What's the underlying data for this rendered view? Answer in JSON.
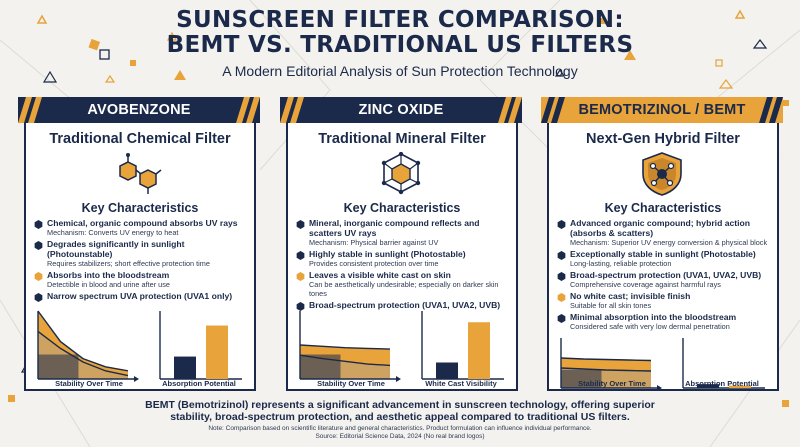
{
  "header": {
    "title_line1": "SUNSCREEN FILTER COMPARISON:",
    "title_line2": "BEMT VS. TRADITIONAL US FILTERS",
    "subtitle": "A Modern Editorial Analysis of Sun Protection Technology"
  },
  "colors": {
    "navy": "#1b2a4a",
    "gold": "#e8a33a",
    "tan": "#c9a36a",
    "background": "#f3f2ef"
  },
  "cards": [
    {
      "banner": "AVOBENZONE",
      "subtitle": "Traditional Chemical Filter",
      "icon": "molecule-icon",
      "key_title": "Key Characteristics",
      "items": [
        {
          "heading": "Chemical, organic compound absorbs UV rays",
          "detail": "Mechanism: Converts UV energy to heat",
          "bullet": "hexagon-navy"
        },
        {
          "heading": "Degrades significantly in sunlight (Photounstable)",
          "detail": "Requires stabilizers; short effective protection time",
          "bullet": "hexagon-navy"
        },
        {
          "heading": "Absorbs into the bloodstream",
          "detail": "Detectible in blood and urine after use",
          "bullet": "hexagon-gold"
        },
        {
          "heading": "Narrow spectrum UVA protection (UVA1 only)",
          "detail": "",
          "bullet": "hexagon-navy"
        }
      ],
      "chart_left_caption": "Stability Over Time",
      "chart_right_caption": "Absorption Potential"
    },
    {
      "banner": "ZINC OXIDE",
      "subtitle": "Traditional Mineral Filter",
      "icon": "crystal-lattice-icon",
      "key_title": "Key Characteristics",
      "items": [
        {
          "heading": "Mineral, inorganic compound reflects and scatters UV rays",
          "detail": "Mechanism: Physical barrier against UV",
          "bullet": "hexagon-navy"
        },
        {
          "heading": "Highly stable in sunlight (Photostable)",
          "detail": "Provides consistent protection over time",
          "bullet": "hexagon-navy"
        },
        {
          "heading": "Leaves a visible white cast on skin",
          "detail": "Can be aesthetically undesirable; especially on darker skin tones",
          "bullet": "hexagon-gold"
        },
        {
          "heading": "Broad-spectrum protection (UVA1, UVA2, UVB)",
          "detail": "",
          "bullet": "hexagon-navy"
        }
      ],
      "chart_left_caption": "Stability Over Time",
      "chart_right_caption": "White Cast Visibility"
    },
    {
      "banner": "BEMOTRIZINOL / BEMT",
      "subtitle": "Next-Gen Hybrid Filter",
      "icon": "shield-molecule-icon",
      "key_title": "Key Characteristics",
      "items": [
        {
          "heading": "Advanced organic compound; hybrid action (absorbs & scatters)",
          "detail": "Mechanism: Superior UV energy conversion & physical block",
          "bullet": "hexagon-navy"
        },
        {
          "heading": "Exceptionally stable in sunlight (Photostable)",
          "detail": "Long-lasting, reliable protection",
          "bullet": "hexagon-navy"
        },
        {
          "heading": "Broad-spectrum protection (UVA1, UVA2, UVB)",
          "detail": "Comprehensive coverage against harmful rays",
          "bullet": "hexagon-navy"
        },
        {
          "heading": "No white cast; invisible finish",
          "detail": "Suitable for all skin tones",
          "bullet": "hexagon-gold"
        },
        {
          "heading": "Minimal absorption into the bloodstream",
          "detail": "Considered safe with very low dermal penetration",
          "bullet": "hexagon-navy"
        }
      ],
      "chart_left_caption": "Stability Over Time",
      "chart_right_caption": "Absorption Potential"
    }
  ],
  "chart_data": [
    {
      "type": "area",
      "series": [
        {
          "values": [
            1.0,
            0.55,
            0.3,
            0.18,
            0.12
          ]
        },
        {
          "values": [
            0.7,
            0.45,
            0.25,
            0.12,
            0.05
          ]
        }
      ]
    },
    {
      "type": "bar",
      "values": [
        0.34,
        0.81
      ]
    },
    {
      "type": "area",
      "series": [
        {
          "values": [
            0.5,
            0.48,
            0.46,
            0.45,
            0.44
          ]
        },
        {
          "values": [
            0.35,
            0.3,
            0.26,
            0.22,
            0.2
          ]
        }
      ]
    },
    {
      "type": "bar",
      "values": [
        0.25,
        0.86
      ]
    },
    {
      "type": "area",
      "series": [
        {
          "values": [
            0.6,
            0.58,
            0.57,
            0.56,
            0.55
          ]
        },
        {
          "values": [
            0.4,
            0.38,
            0.36,
            0.35,
            0.34
          ]
        }
      ]
    },
    {
      "type": "bar",
      "values": [
        0.08,
        0.05
      ]
    }
  ],
  "footer": {
    "main_line1": "BEMT (Bemotrizinol) represents a significant advancement in sunscreen technology, offering superior",
    "main_line2": "stability, broad-spectrum protection, and aesthetic appeal compared to traditional US filters.",
    "note1": "Note: Comparison based on scientific literature and general characteristics. Product formulation can influence individual performance.",
    "note2": "Source: Editorial Science Data, 2024 (No real brand logos)"
  }
}
